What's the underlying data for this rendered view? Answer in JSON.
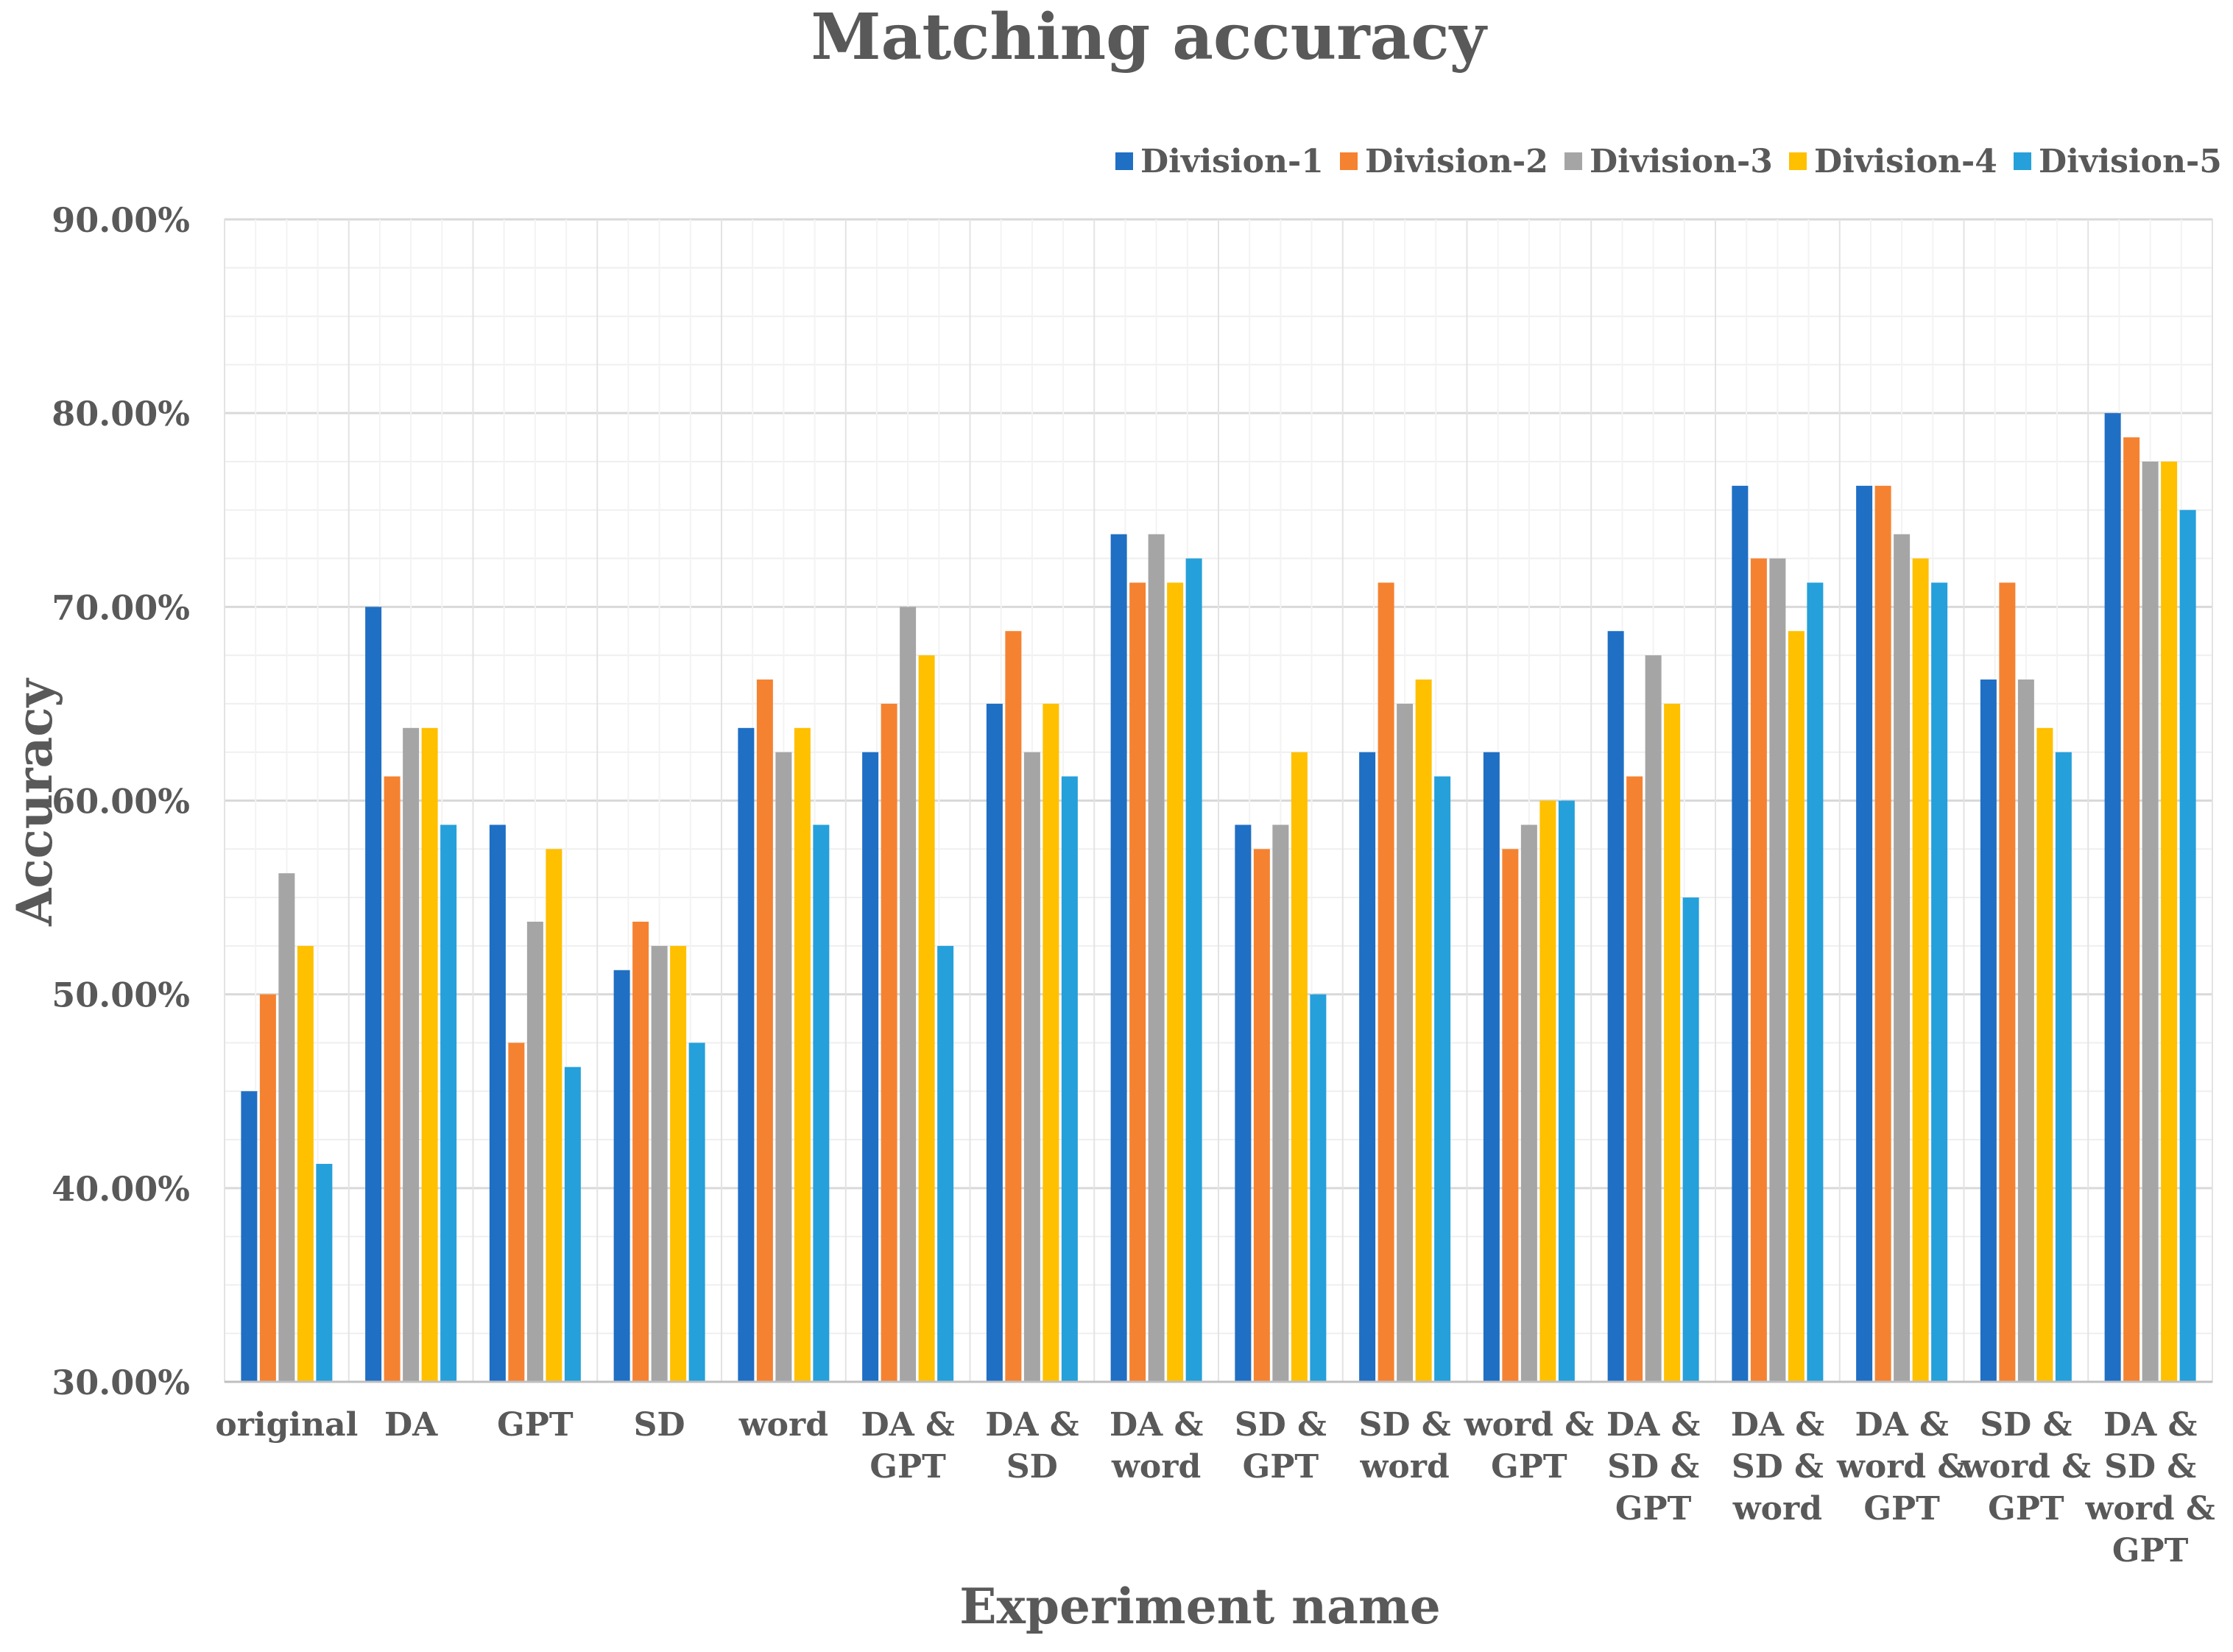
{
  "chart_data": {
    "type": "bar",
    "title": "Matching accuracy",
    "xlabel": "Experiment name",
    "ylabel": "Accuracy",
    "ylim": [
      30,
      90
    ],
    "yticks": [
      "30.00%",
      "40.00%",
      "50.00%",
      "60.00%",
      "70.00%",
      "80.00%",
      "90.00%"
    ],
    "grid": true,
    "legend_position": "top-right",
    "categories": [
      [
        "original"
      ],
      [
        "DA"
      ],
      [
        "GPT"
      ],
      [
        "SD"
      ],
      [
        "word"
      ],
      [
        "DA &",
        "GPT"
      ],
      [
        "DA &",
        "SD"
      ],
      [
        "DA &",
        "word"
      ],
      [
        "SD &",
        "GPT"
      ],
      [
        "SD &",
        "word"
      ],
      [
        "word &",
        "GPT"
      ],
      [
        "DA &",
        "SD &",
        "GPT"
      ],
      [
        "DA &",
        "SD &",
        "word"
      ],
      [
        "DA &",
        "word &",
        "GPT"
      ],
      [
        "SD &",
        "word &",
        "GPT"
      ],
      [
        "DA &",
        "SD &",
        "word &",
        "GPT"
      ]
    ],
    "series": [
      {
        "name": "Division-1",
        "color": "#1f6fc4",
        "values": [
          45.0,
          70.0,
          58.75,
          51.25,
          63.75,
          62.5,
          65.0,
          73.75,
          58.75,
          62.5,
          62.5,
          68.75,
          76.25,
          76.25,
          66.25,
          80.0
        ]
      },
      {
        "name": "Division-2",
        "color": "#f58231",
        "values": [
          50.0,
          61.25,
          47.5,
          53.75,
          66.25,
          65.0,
          68.75,
          71.25,
          57.5,
          71.25,
          57.5,
          61.25,
          72.5,
          76.25,
          71.25,
          78.75
        ]
      },
      {
        "name": "Division-3",
        "color": "#a5a5a5",
        "values": [
          56.25,
          63.75,
          53.75,
          52.5,
          62.5,
          70.0,
          62.5,
          73.75,
          58.75,
          65.0,
          58.75,
          67.5,
          72.5,
          73.75,
          66.25,
          77.5
        ]
      },
      {
        "name": "Division-4",
        "color": "#ffc000",
        "values": [
          52.5,
          63.75,
          57.5,
          52.5,
          63.75,
          67.5,
          65.0,
          71.25,
          62.5,
          66.25,
          60.0,
          65.0,
          68.75,
          72.5,
          63.75,
          77.5
        ]
      },
      {
        "name": "Division-5",
        "color": "#25a0da",
        "values": [
          41.25,
          58.75,
          46.25,
          47.5,
          58.75,
          52.5,
          61.25,
          72.5,
          50.0,
          61.25,
          60.0,
          55.0,
          71.25,
          71.25,
          62.5,
          75.0
        ]
      }
    ]
  }
}
